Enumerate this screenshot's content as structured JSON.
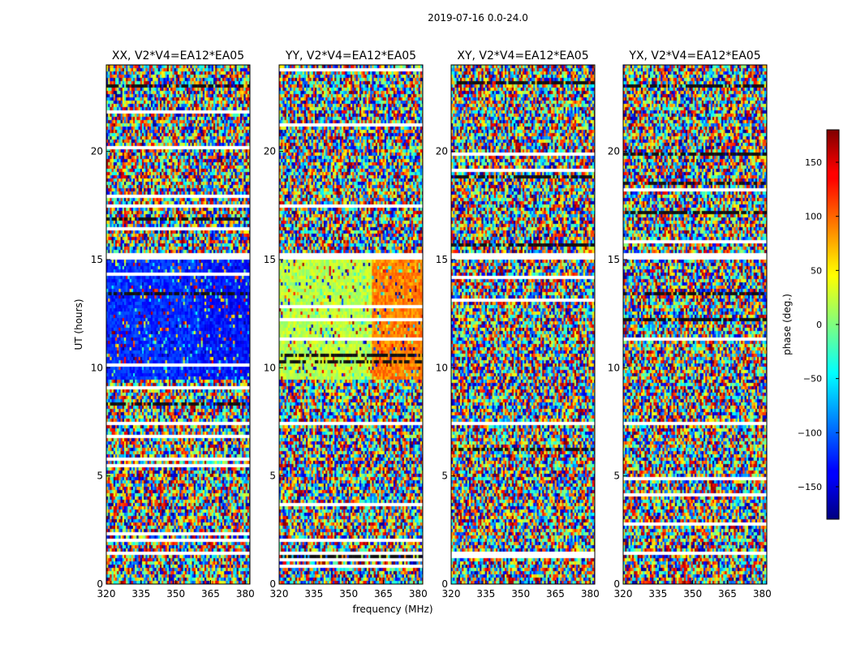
{
  "figure": {
    "suptitle": "2019-07-16 0.0-24.0"
  },
  "chart_data": {
    "type": "heatmap",
    "title": "2019-07-16 0.0-24.0",
    "xlabel": "frequency (MHz)",
    "ylabel": "UT (hours)",
    "xlim": [
      320,
      382
    ],
    "ylim": [
      0,
      24
    ],
    "xticks": [
      320,
      335,
      350,
      365,
      380
    ],
    "yticks": [
      0,
      5,
      10,
      15,
      20
    ],
    "colorbar": {
      "label": "phase (deg.)",
      "range": [
        -180,
        180
      ],
      "ticks": [
        150,
        100,
        50,
        0,
        -50,
        -100,
        -150
      ],
      "colormap": "jet"
    },
    "panels": [
      {
        "title": "XX, V2*V4=EA12*EA05",
        "coherent_phase": {
          "ut_range": [
            9.5,
            15.0
          ],
          "phase_low_freq": -120,
          "phase_high_freq": -130,
          "freq_break": 360
        },
        "flagged_ut_bands": [
          [
            0.85,
            0.95
          ],
          [
            1.35,
            1.5
          ],
          [
            7.3,
            7.45
          ],
          [
            15.0,
            15.3
          ]
        ]
      },
      {
        "title": "YY, V2*V4=EA12*EA05",
        "coherent_phase": {
          "ut_range": [
            9.5,
            15.0
          ],
          "phase_low_freq": 20,
          "phase_high_freq": 90,
          "freq_break": 360
        },
        "flagged_ut_bands": [
          [
            0.85,
            0.95
          ],
          [
            1.35,
            1.5
          ],
          [
            7.3,
            7.45
          ],
          [
            15.0,
            15.3
          ]
        ]
      },
      {
        "title": "XY, V2*V4=EA12*EA05",
        "coherent_phase": null,
        "flagged_ut_bands": [
          [
            0.85,
            0.95
          ],
          [
            1.35,
            1.5
          ],
          [
            7.3,
            7.45
          ],
          [
            15.0,
            15.3
          ]
        ]
      },
      {
        "title": "YX, V2*V4=EA12*EA05",
        "coherent_phase": null,
        "flagged_ut_bands": [
          [
            0.85,
            0.95
          ],
          [
            1.35,
            1.5
          ],
          [
            7.3,
            7.45
          ],
          [
            15.0,
            15.3
          ]
        ]
      }
    ]
  }
}
